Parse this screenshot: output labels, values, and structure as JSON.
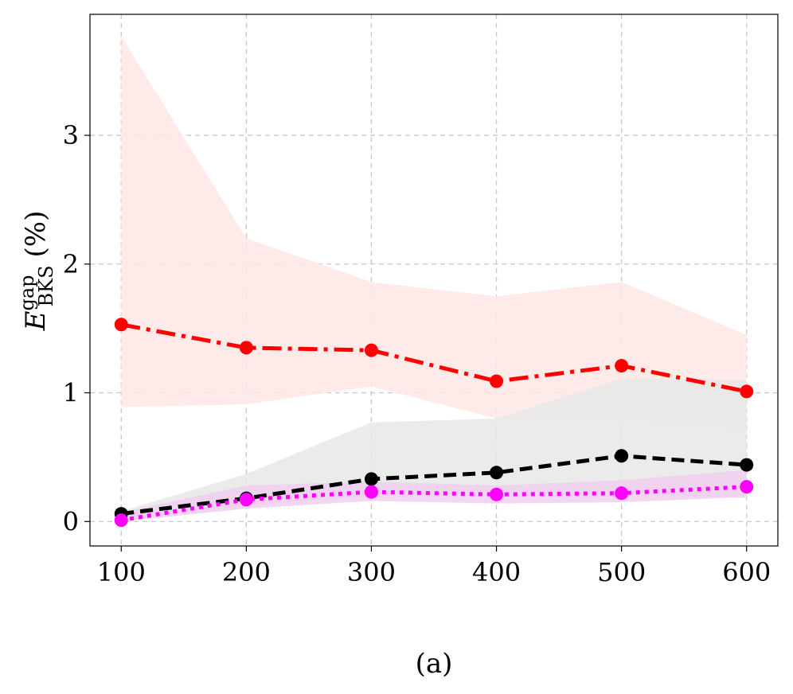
{
  "chart_data": {
    "type": "line",
    "title": "",
    "caption": "(a)",
    "xlabel": "",
    "ylabel": {
      "base": "E",
      "superscript": "gap",
      "subscript": "BKS",
      "unit": "(%)"
    },
    "x": [
      100,
      200,
      300,
      400,
      500,
      600
    ],
    "xticks": [
      "100",
      "200",
      "300",
      "400",
      "500",
      "600"
    ],
    "yticks": [
      "0",
      "1",
      "2",
      "3"
    ],
    "xlim": [
      75,
      625
    ],
    "ylim": [
      -0.19,
      3.94
    ],
    "grid": true,
    "legend": "none",
    "series": [
      {
        "key": "red",
        "color": "#ff0000",
        "band_color": "#ffe6e6",
        "linestyle": "dashdot",
        "values": [
          1.53,
          1.35,
          1.33,
          1.09,
          1.21,
          1.01
        ],
        "lower": [
          0.89,
          0.91,
          1.05,
          0.8,
          0.8,
          0.72
        ],
        "upper": [
          3.77,
          2.2,
          1.86,
          1.75,
          1.86,
          1.45
        ]
      },
      {
        "key": "black",
        "color": "#000000",
        "band_color": "#e8e8e8",
        "linestyle": "dashed",
        "values": [
          0.06,
          0.18,
          0.33,
          0.38,
          0.51,
          0.44
        ],
        "lower": [
          0.01,
          0.12,
          0.2,
          0.22,
          0.22,
          0.18
        ],
        "upper": [
          0.08,
          0.37,
          0.77,
          0.8,
          1.11,
          1.1
        ]
      },
      {
        "key": "magenta",
        "color": "#ff00ff",
        "band_color": "#f0cff0",
        "linestyle": "dotted",
        "values": [
          0.01,
          0.17,
          0.23,
          0.21,
          0.22,
          0.27
        ],
        "lower": [
          0.0,
          0.1,
          0.16,
          0.14,
          0.15,
          0.19
        ],
        "upper": [
          0.07,
          0.28,
          0.31,
          0.28,
          0.32,
          0.4
        ]
      }
    ]
  }
}
